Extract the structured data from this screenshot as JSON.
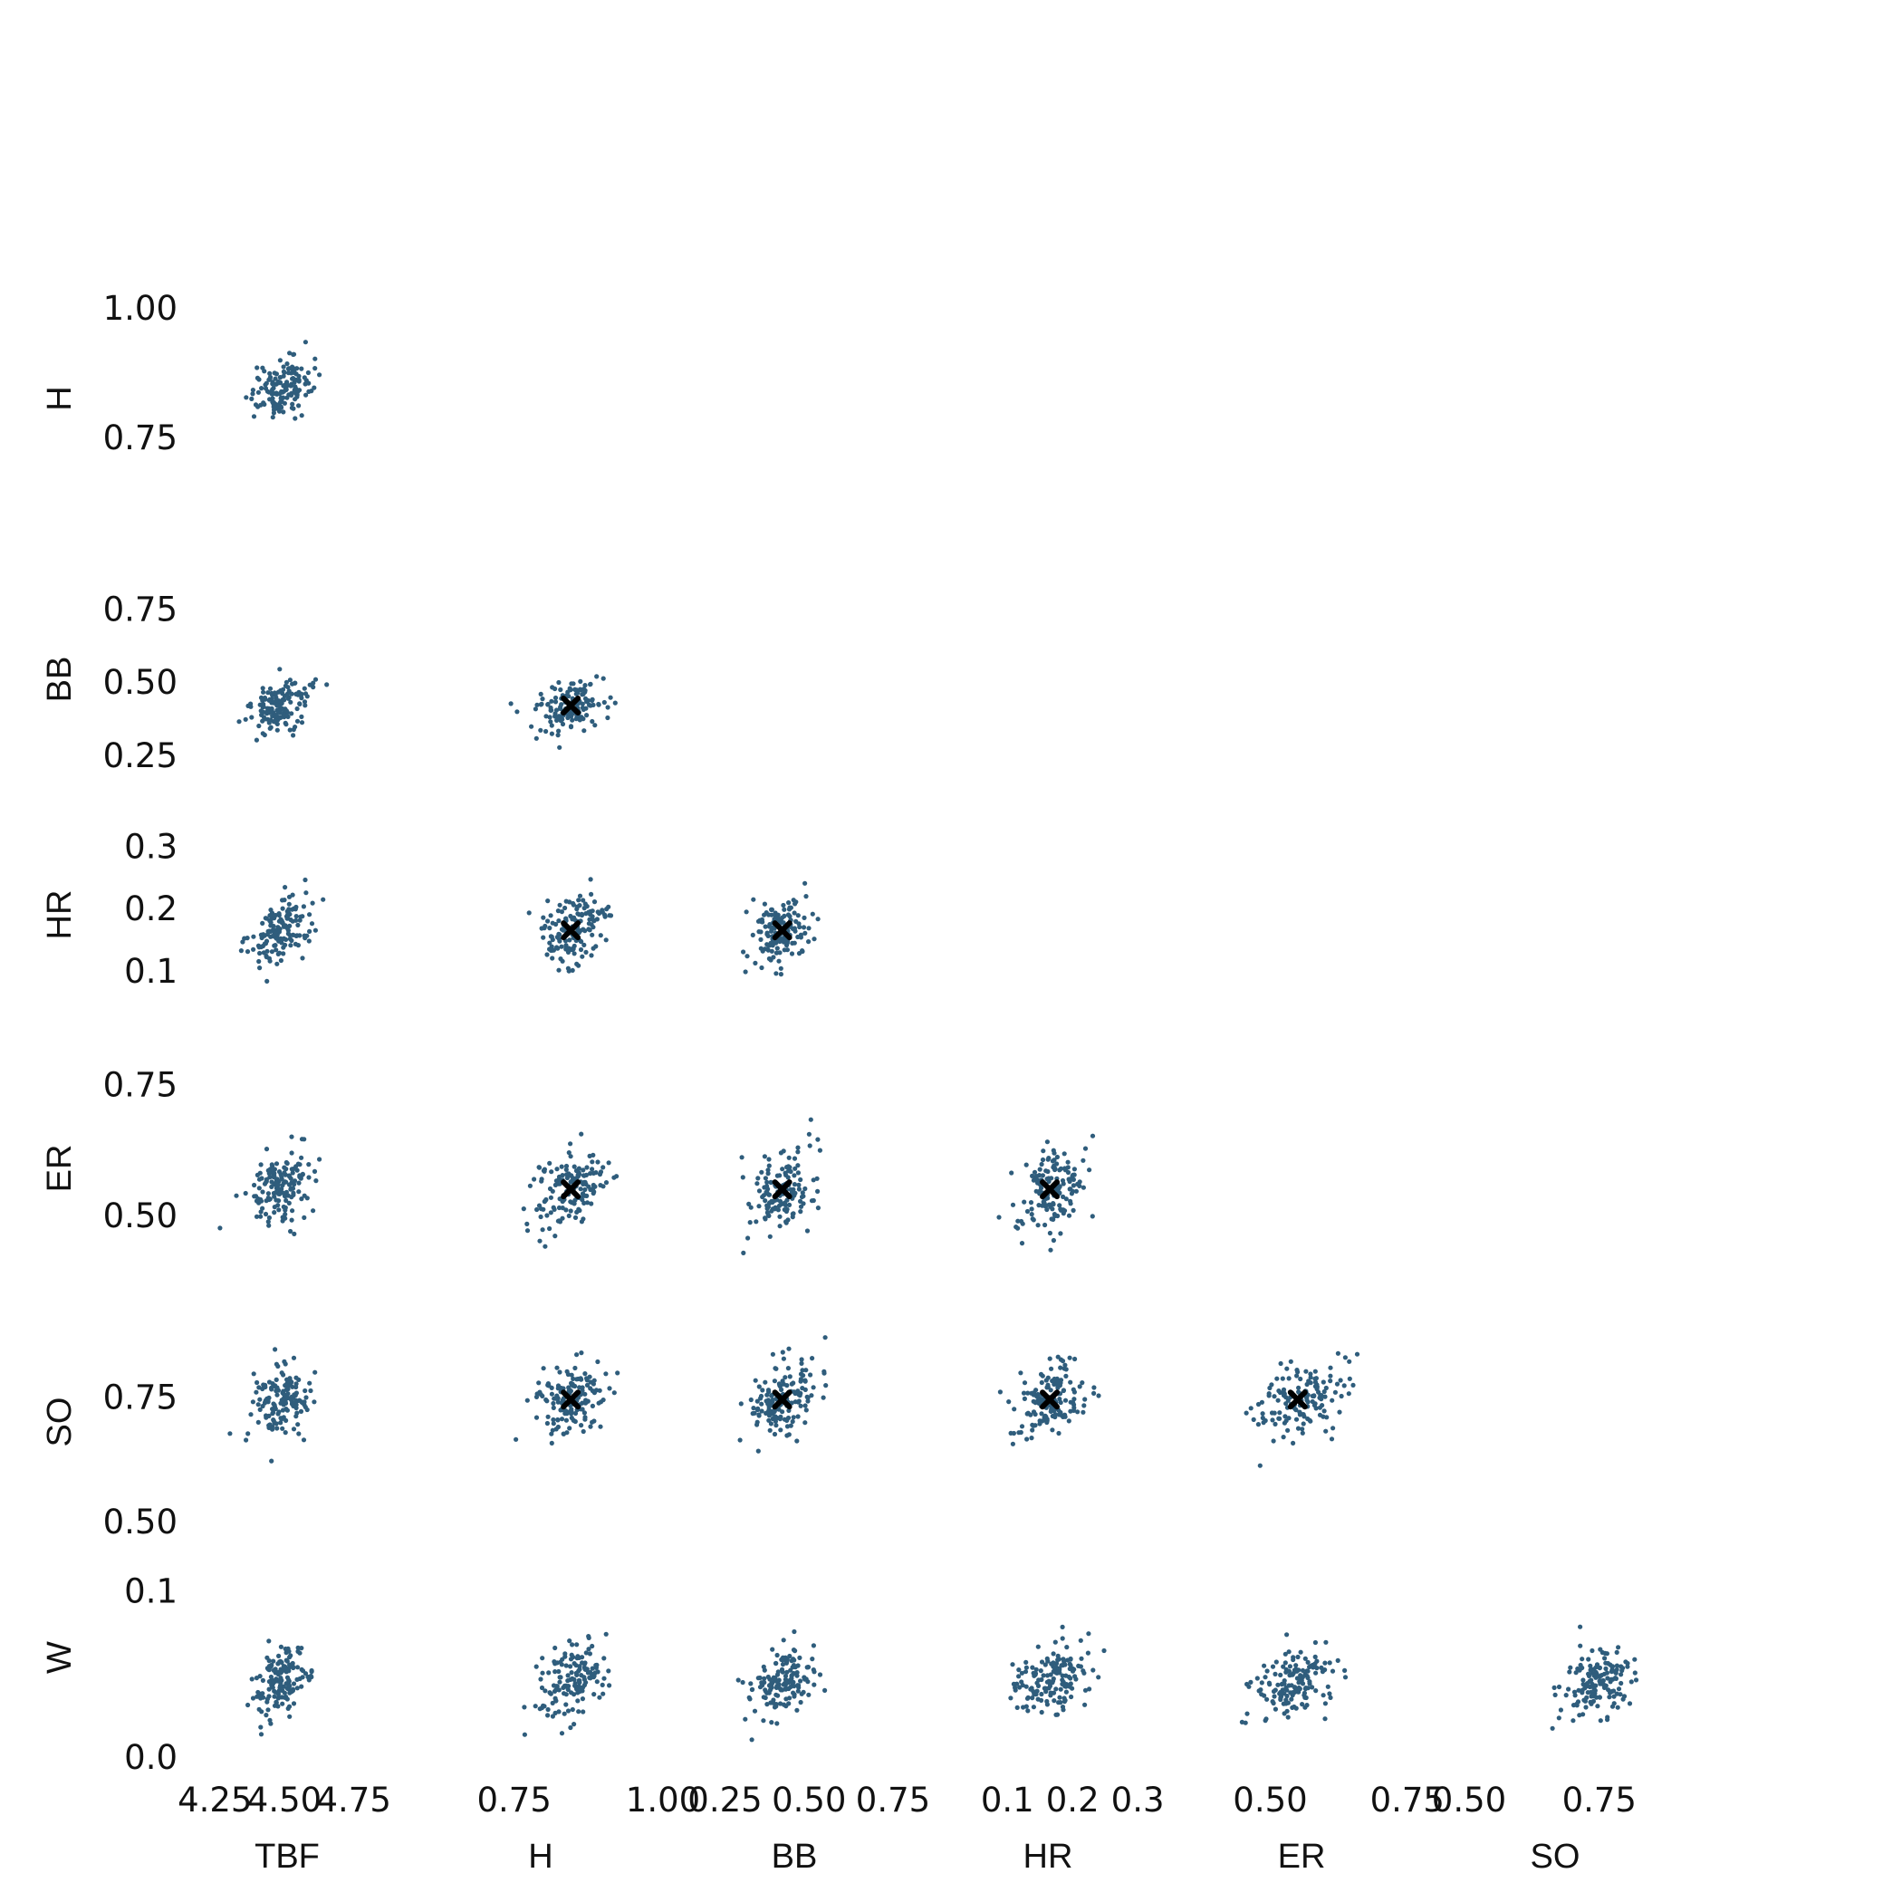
{
  "chart_data": {
    "type": "scatter",
    "kind": "pair-grid (lower triangle)",
    "colors": {
      "points": "#2f5d7c",
      "center_marker": "#000000",
      "background": "#ffffff"
    },
    "variables": [
      "TBF",
      "H",
      "BB",
      "HR",
      "ER",
      "SO",
      "W"
    ],
    "x_variables": [
      "TBF",
      "H",
      "BB",
      "HR",
      "ER",
      "SO"
    ],
    "y_variables": [
      "H",
      "BB",
      "HR",
      "ER",
      "SO",
      "W"
    ],
    "axes": {
      "TBF": {
        "ticks": [
          4.25,
          4.5,
          4.75
        ],
        "tick_labels": [
          "4.25",
          "4.50",
          "4.75"
        ],
        "range": [
          4.2,
          4.95
        ]
      },
      "H": {
        "ticks": [
          0.75,
          1.0
        ],
        "tick_labels": [
          "0.75",
          "1.00"
        ],
        "range": [
          0.65,
          1.0
        ]
      },
      "BB": {
        "ticks": [
          0.25,
          0.5,
          0.75
        ],
        "tick_labels": [
          "0.25",
          "0.50",
          "0.75"
        ],
        "range": [
          0.2,
          0.82
        ]
      },
      "HR": {
        "ticks": [
          0.1,
          0.2,
          0.3
        ],
        "tick_labels": [
          "0.1",
          "0.2",
          "0.3"
        ],
        "range": [
          0.03,
          0.35
        ]
      },
      "ER": {
        "ticks": [
          0.5,
          0.75
        ],
        "tick_labels": [
          "0.50",
          "0.75"
        ],
        "range": [
          0.4,
          0.78
        ]
      },
      "SO": {
        "ticks": [
          0.5,
          0.75
        ],
        "tick_labels": [
          "0.50",
          "0.75"
        ],
        "range": [
          0.5,
          0.9
        ]
      },
      "W": {
        "ticks": [
          0.0,
          0.1
        ],
        "tick_labels": [
          "0.0",
          "0.1"
        ],
        "range": [
          0.0,
          0.12
        ]
      }
    },
    "centers": {
      "H": 0.845,
      "BB": 0.42,
      "HR": 0.165,
      "ER": 0.55,
      "SO": 0.745
    },
    "spread": {
      "TBF": 0.1,
      "H": 0.055,
      "BB": 0.085,
      "HR": 0.05,
      "ER": 0.075,
      "SO": 0.07,
      "W": 0.022
    },
    "mean_marker_panels": [
      [
        "H",
        "BB"
      ],
      [
        "H",
        "HR"
      ],
      [
        "BB",
        "HR"
      ],
      [
        "H",
        "ER"
      ],
      [
        "BB",
        "ER"
      ],
      [
        "HR",
        "ER"
      ],
      [
        "H",
        "SO"
      ],
      [
        "BB",
        "SO"
      ],
      [
        "HR",
        "SO"
      ],
      [
        "ER",
        "SO"
      ]
    ],
    "n_points_per_panel": 150,
    "grid": false,
    "legend": false
  }
}
